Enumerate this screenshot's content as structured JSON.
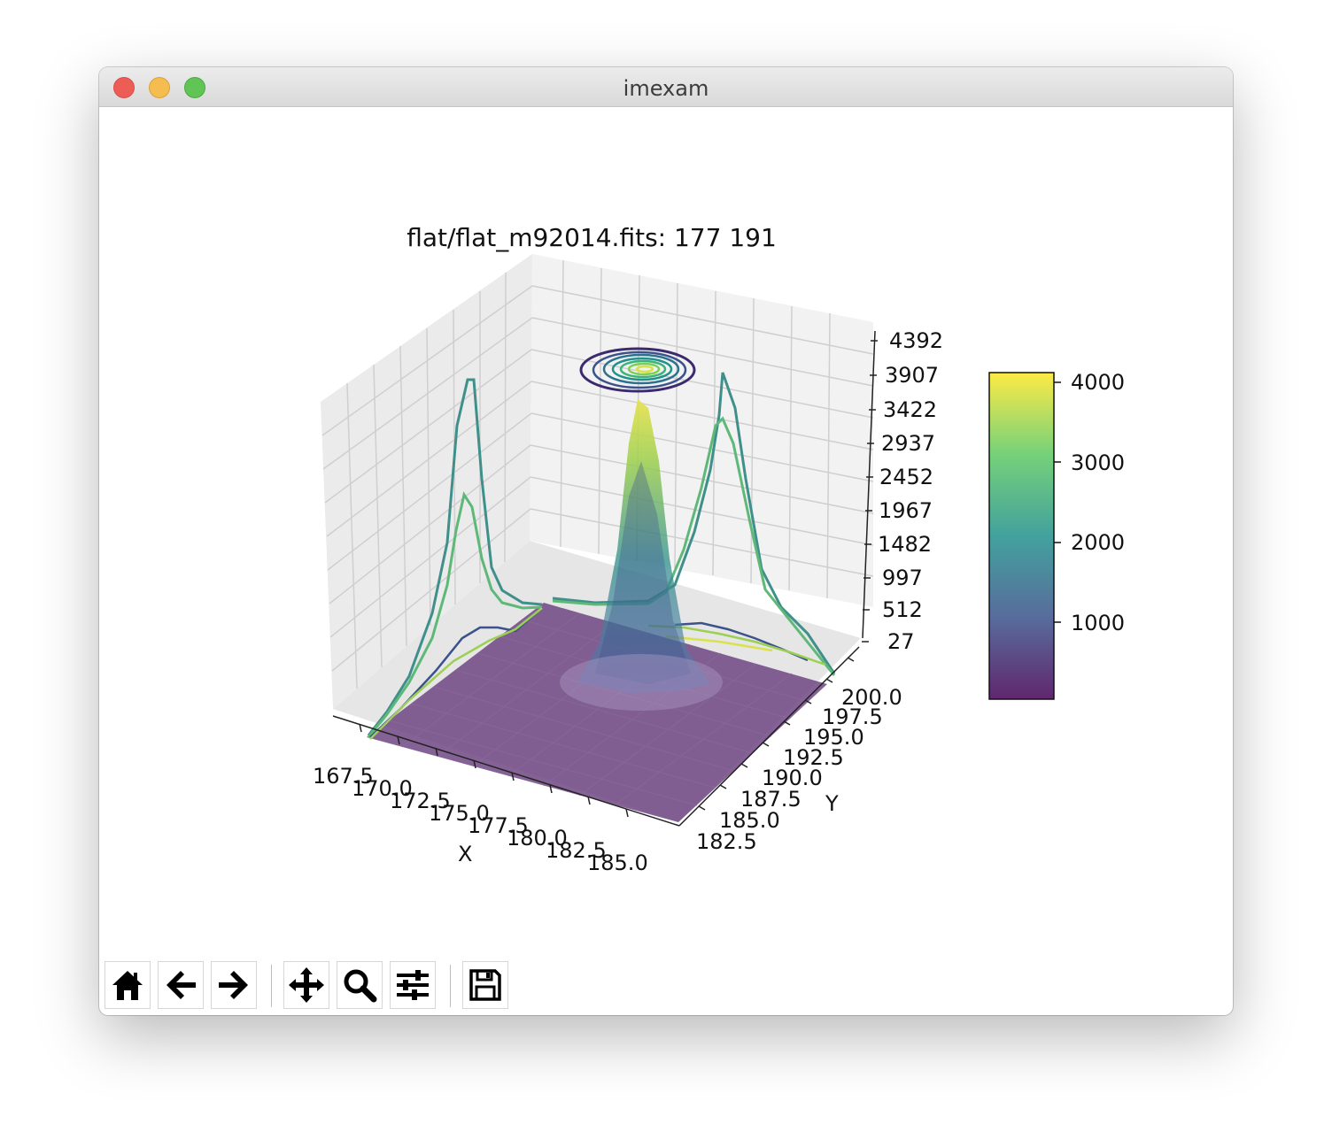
{
  "window": {
    "title": "imexam"
  },
  "colors": {
    "viridis": [
      "#440154",
      "#3b528b",
      "#21918c",
      "#5ec962",
      "#fde725"
    ],
    "surface": "#6a3f7e",
    "pane": "#f2f2f2"
  },
  "toolbar": {
    "buttons": [
      {
        "name": "home-button",
        "icon": "home-icon"
      },
      {
        "name": "back-button",
        "icon": "arrow-left-icon"
      },
      {
        "name": "forward-button",
        "icon": "arrow-right-icon"
      },
      {
        "name": "pan-button",
        "icon": "move-icon"
      },
      {
        "name": "zoom-button",
        "icon": "magnifier-icon"
      },
      {
        "name": "configure-subplots-button",
        "icon": "sliders-icon"
      },
      {
        "name": "save-button",
        "icon": "floppy-disk-icon"
      }
    ]
  },
  "chart_data": {
    "type": "surface",
    "title": "flat/flat_m92014.fits: 177 191",
    "xlabel": "X",
    "ylabel": "Y",
    "x_ticks": [
      "167.5",
      "170.0",
      "172.5",
      "175.0",
      "177.5",
      "180.0",
      "182.5",
      "185.0"
    ],
    "y_ticks": [
      "182.5",
      "185.0",
      "187.5",
      "190.0",
      "192.5",
      "195.0",
      "197.5",
      "200.0"
    ],
    "z_ticks": [
      "27",
      "512",
      "997",
      "1482",
      "1967",
      "2452",
      "2937",
      "3422",
      "3907",
      "4392"
    ],
    "xlim": [
      167,
      186
    ],
    "ylim": [
      181,
      201
    ],
    "zlim": [
      27,
      4392
    ],
    "grid": true,
    "colormap": "viridis",
    "peak": {
      "x": 177,
      "y": 191,
      "z": 4200
    },
    "colorbar": {
      "ticks": [
        "1000",
        "2000",
        "3000",
        "4000"
      ],
      "range": [
        27,
        4150
      ]
    }
  }
}
